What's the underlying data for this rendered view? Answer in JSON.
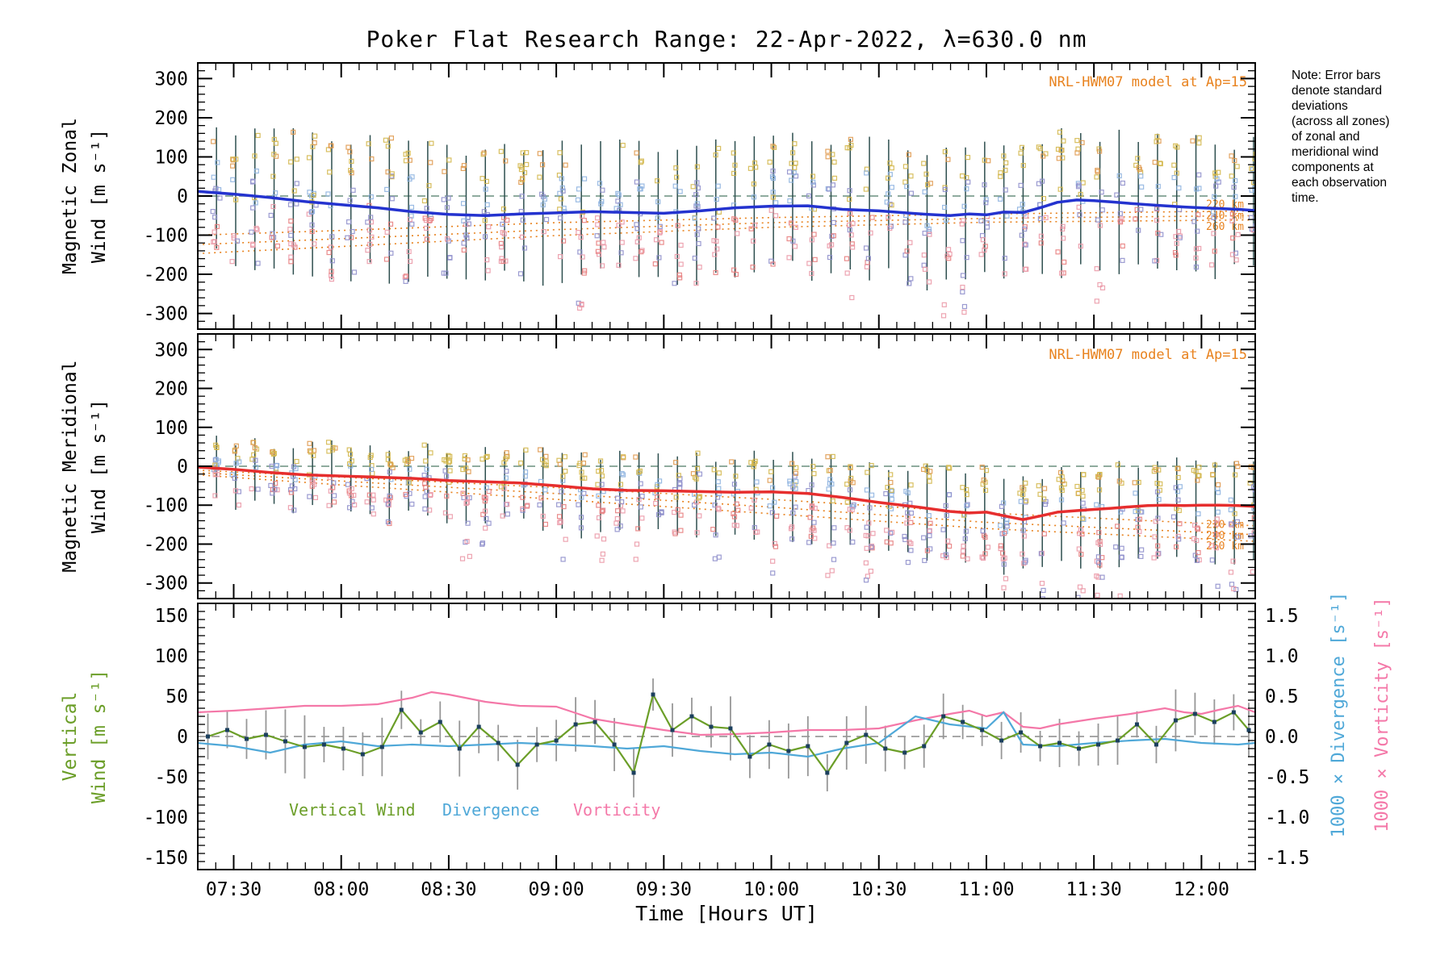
{
  "title": "Poker Flat Research Range: 22-Apr-2022, λ=630.0 nm",
  "xlabel": "Time [Hours UT]",
  "model_annotation": "NRL-HWM07 model at Ap=15",
  "note_lines": [
    "Note: Error bars",
    "denote standard",
    "deviations",
    "(across all zones)",
    "of zonal and",
    "meridional wind",
    "components at",
    "each observation",
    "time."
  ],
  "colors": {
    "zonal": "#2433cf",
    "meridional": "#e62e2e",
    "model": "#e8821e",
    "vertical": "#6b9e28",
    "vertical_point": "#1b3f5e",
    "divergence": "#4fa8d8",
    "vorticity": "#f478a8",
    "errorbar": "#2e4f4f",
    "errorbar_gray": "#979797",
    "zero_dash_wind": "#6a8f7f",
    "zero_dash_gray": "#8a8a8a",
    "scatter_palette": [
      "#d4b84e",
      "#e09a50",
      "#eb9aa8",
      "#8fb4e0",
      "#9090cc",
      "#e88080"
    ]
  },
  "axes": {
    "x": {
      "min": 7.333,
      "max": 12.25,
      "minor_step": 0.083333,
      "major_ticks": [
        {
          "v": 7.5,
          "label": "07:30"
        },
        {
          "v": 8.0,
          "label": "08:00"
        },
        {
          "v": 8.5,
          "label": "08:30"
        },
        {
          "v": 9.0,
          "label": "09:00"
        },
        {
          "v": 9.5,
          "label": "09:30"
        },
        {
          "v": 10.0,
          "label": "10:00"
        },
        {
          "v": 10.5,
          "label": "10:30"
        },
        {
          "v": 11.0,
          "label": "11:00"
        },
        {
          "v": 11.5,
          "label": "11:30"
        },
        {
          "v": 12.0,
          "label": "12:00"
        }
      ]
    },
    "wind": {
      "label_range": 300,
      "plot_range": 340,
      "major_step": 100,
      "minor_step": 20,
      "tick_labels": [
        "300",
        "200",
        "100",
        "0",
        "-100",
        "-200",
        "-300"
      ]
    },
    "vertical": {
      "label_range": 150,
      "plot_range": 165,
      "major_step": 50,
      "minor_step": 10,
      "tick_labels": [
        "150",
        "100",
        "50",
        "0",
        "-50",
        "-100",
        "-150"
      ]
    },
    "right": {
      "tick_labels": [
        "1.5",
        "1.0",
        "0.5",
        "0.0",
        "-0.5",
        "-1.0",
        "-1.5"
      ]
    }
  },
  "chart_data": [
    {
      "type": "line",
      "name": "magnetic-zonal-wind",
      "ylabel_lines": [
        "Magnetic Zonal",
        "Wind [m s⁻¹]"
      ],
      "ylim": [
        -300,
        300
      ],
      "mean": {
        "t": [
          7.33,
          7.5,
          7.67,
          7.83,
          8.0,
          8.17,
          8.33,
          8.5,
          8.67,
          8.83,
          9.0,
          9.17,
          9.33,
          9.5,
          9.67,
          9.83,
          10.0,
          10.17,
          10.33,
          10.5,
          10.67,
          10.83,
          10.92,
          11.0,
          11.08,
          11.17,
          11.25,
          11.33,
          11.42,
          11.5,
          11.58,
          11.67,
          11.75,
          11.83,
          11.92,
          12.0,
          12.08,
          12.17,
          12.25
        ],
        "v": [
          12,
          5,
          -4,
          -14,
          -22,
          -30,
          -40,
          -47,
          -50,
          -46,
          -43,
          -40,
          -42,
          -44,
          -38,
          -30,
          -26,
          -25,
          -34,
          -38,
          -45,
          -50,
          -46,
          -48,
          -41,
          -42,
          -30,
          -16,
          -10,
          -12,
          -15,
          -19,
          -22,
          -25,
          -28,
          -30,
          -32,
          -34,
          -37
        ]
      },
      "models": [
        {
          "label": "220 km",
          "label_v": -22,
          "t": [
            7.33,
            8.0,
            9.0,
            10.0,
            11.0,
            12.25
          ],
          "v": [
            -100,
            -88,
            -68,
            -55,
            -46,
            -38
          ]
        },
        {
          "label": "240 km",
          "label_v": -50,
          "t": [
            7.33,
            8.0,
            9.0,
            10.0,
            11.0,
            12.25
          ],
          "v": [
            -124,
            -109,
            -86,
            -68,
            -57,
            -50
          ]
        },
        {
          "label": "260 km",
          "label_v": -78,
          "t": [
            7.33,
            8.0,
            9.0,
            10.0,
            11.0,
            12.25
          ],
          "v": [
            -147,
            -129,
            -101,
            -80,
            -67,
            -61
          ]
        }
      ]
    },
    {
      "type": "line",
      "name": "magnetic-meridional-wind",
      "ylabel_lines": [
        "Magnetic Meridional",
        "Wind [m s⁻¹]"
      ],
      "ylim": [
        -300,
        300
      ],
      "mean": {
        "t": [
          7.33,
          7.5,
          7.67,
          7.83,
          8.0,
          8.17,
          8.33,
          8.5,
          8.67,
          8.83,
          9.0,
          9.17,
          9.33,
          9.5,
          9.67,
          9.83,
          10.0,
          10.17,
          10.33,
          10.5,
          10.67,
          10.83,
          10.92,
          11.0,
          11.08,
          11.17,
          11.25,
          11.33,
          11.42,
          11.5,
          11.58,
          11.67,
          11.75,
          11.83,
          11.92,
          12.0,
          12.08,
          12.17,
          12.25
        ],
        "v": [
          -2,
          -8,
          -16,
          -22,
          -25,
          -28,
          -31,
          -37,
          -40,
          -43,
          -50,
          -58,
          -62,
          -63,
          -65,
          -67,
          -66,
          -70,
          -80,
          -93,
          -104,
          -116,
          -120,
          -118,
          -127,
          -137,
          -128,
          -118,
          -114,
          -111,
          -108,
          -104,
          -101,
          -100,
          -101,
          -100,
          -100,
          -101,
          -103
        ]
      },
      "models": [
        {
          "label": "220 km",
          "label_v": -150,
          "t": [
            7.33,
            8.0,
            9.0,
            10.0,
            11.0,
            12.25
          ],
          "v": [
            -10,
            -28,
            -55,
            -85,
            -120,
            -153
          ]
        },
        {
          "label": "240 km",
          "label_v": -178,
          "t": [
            7.33,
            8.0,
            9.0,
            10.0,
            11.0,
            12.25
          ],
          "v": [
            -16,
            -38,
            -70,
            -105,
            -144,
            -176
          ]
        },
        {
          "label": "260 km",
          "label_v": -205,
          "t": [
            7.33,
            8.0,
            9.0,
            10.0,
            11.0,
            12.25
          ],
          "v": [
            -22,
            -48,
            -85,
            -122,
            -160,
            -193
          ]
        }
      ]
    },
    {
      "type": "multi-line",
      "name": "vertical-wind-divergence-vorticity",
      "ylabel_lines": [
        "Vertical",
        "Wind [m s⁻¹]"
      ],
      "ylim": [
        -150,
        150
      ],
      "right_ylim": [
        -1.5,
        1.5
      ],
      "right_axis_labels": [
        "1000 × Divergence [s⁻¹]",
        "1000 × Vorticity [s⁻¹]"
      ],
      "vertical": {
        "t": [
          7.38,
          7.47,
          7.56,
          7.65,
          7.74,
          7.83,
          7.92,
          8.01,
          8.1,
          8.19,
          8.28,
          8.37,
          8.46,
          8.55,
          8.64,
          8.73,
          8.82,
          8.91,
          9.0,
          9.09,
          9.18,
          9.27,
          9.36,
          9.45,
          9.54,
          9.63,
          9.72,
          9.81,
          9.9,
          9.99,
          10.08,
          10.17,
          10.26,
          10.35,
          10.44,
          10.53,
          10.62,
          10.71,
          10.8,
          10.89,
          10.98,
          11.07,
          11.16,
          11.25,
          11.34,
          11.43,
          11.52,
          11.61,
          11.7,
          11.79,
          11.88,
          11.97,
          12.06,
          12.15,
          12.22
        ],
        "v": [
          0,
          8,
          -3,
          2,
          -6,
          -13,
          -10,
          -15,
          -22,
          -13,
          33,
          5,
          18,
          -15,
          12,
          -8,
          -35,
          -10,
          -5,
          15,
          18,
          -10,
          -45,
          52,
          8,
          25,
          12,
          10,
          -25,
          -10,
          -18,
          -12,
          -45,
          -8,
          2,
          -15,
          -20,
          -12,
          25,
          18,
          8,
          -5,
          5,
          -12,
          -8,
          -15,
          -10,
          -5,
          15,
          -10,
          20,
          28,
          18,
          30,
          8
        ]
      },
      "divergence": {
        "plot_scale": 100,
        "t": [
          7.33,
          7.5,
          7.67,
          7.83,
          8.0,
          8.17,
          8.33,
          8.5,
          8.67,
          8.83,
          9.0,
          9.17,
          9.33,
          9.5,
          9.67,
          9.83,
          10.0,
          10.17,
          10.33,
          10.5,
          10.67,
          10.83,
          11.0,
          11.08,
          11.17,
          11.33,
          11.5,
          11.67,
          11.83,
          12.0,
          12.17,
          12.25
        ],
        "v": [
          -0.08,
          -0.12,
          -0.2,
          -0.1,
          -0.06,
          -0.12,
          -0.1,
          -0.12,
          -0.1,
          -0.08,
          -0.1,
          -0.12,
          -0.15,
          -0.12,
          -0.18,
          -0.22,
          -0.2,
          -0.25,
          -0.15,
          -0.08,
          0.25,
          0.15,
          0.1,
          0.3,
          -0.1,
          -0.12,
          -0.08,
          -0.05,
          -0.03,
          -0.08,
          -0.1,
          -0.08
        ]
      },
      "vorticity": {
        "plot_scale": 100,
        "t": [
          7.33,
          7.5,
          7.67,
          7.83,
          8.0,
          8.17,
          8.33,
          8.42,
          8.5,
          8.67,
          8.83,
          9.0,
          9.08,
          9.17,
          9.33,
          9.5,
          9.67,
          9.83,
          10.0,
          10.17,
          10.33,
          10.5,
          10.67,
          10.83,
          10.92,
          11.0,
          11.08,
          11.17,
          11.25,
          11.33,
          11.5,
          11.67,
          11.83,
          11.92,
          12.0,
          12.08,
          12.17,
          12.25
        ],
        "v": [
          0.3,
          0.32,
          0.35,
          0.38,
          0.38,
          0.4,
          0.48,
          0.55,
          0.52,
          0.43,
          0.38,
          0.37,
          0.3,
          0.22,
          0.15,
          0.08,
          0.02,
          0.03,
          0.05,
          0.08,
          0.08,
          0.1,
          0.2,
          0.28,
          0.32,
          0.25,
          0.3,
          0.12,
          0.1,
          0.15,
          0.22,
          0.28,
          0.35,
          0.3,
          0.28,
          0.33,
          0.38,
          0.3
        ]
      },
      "legend": [
        {
          "label": "Vertical Wind",
          "color": "vertical"
        },
        {
          "label": "Divergence",
          "color": "divergence"
        },
        {
          "label": "Vorticity",
          "color": "vorticity"
        }
      ]
    }
  ],
  "errorbar_gen": {
    "seed": 77,
    "t_start": 7.42,
    "t_step": 0.0893,
    "count": 55,
    "zonal": {
      "up_base": 150,
      "up_rand": 40,
      "dn_base": 140,
      "dn_rand": 55,
      "deep_prob": 0.15
    },
    "meridional": {
      "up_base": 55,
      "up_slope": 9,
      "up_rand": 30,
      "dn_base": 70,
      "dn_slope": 13,
      "dn_rand": 40,
      "deep_prob": 0.45
    },
    "scatter": {
      "min_pts": 9,
      "extra_pts": 8,
      "size": 5,
      "jitter": 9,
      "deep_after": 8.4,
      "deep_max": 85
    },
    "vertical_err": {
      "base": 15,
      "rand": 25
    }
  }
}
